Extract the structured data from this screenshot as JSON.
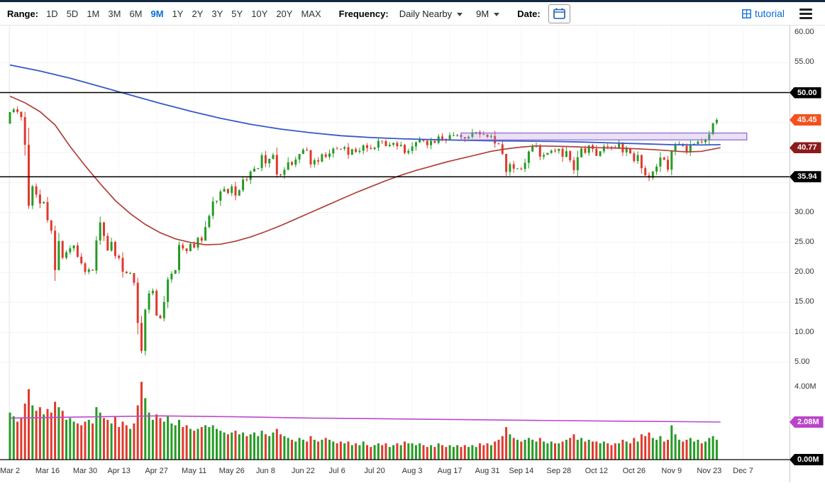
{
  "toolbar": {
    "range_label": "Range:",
    "ranges": [
      "1D",
      "5D",
      "1M",
      "3M",
      "6M",
      "9M",
      "1Y",
      "2Y",
      "3Y",
      "5Y",
      "10Y",
      "20Y",
      "MAX"
    ],
    "selected_range": "9M",
    "frequency_label": "Frequency:",
    "frequency_value": "Daily Nearby",
    "period_value": "9M",
    "date_label": "Date:",
    "tutorial_label": "tutorial"
  },
  "colors": {
    "up": "#259b24",
    "down": "#e0392d",
    "ma_blue": "#3559c7",
    "ma_red": "#b04038",
    "vol_ma": "#bb49cc",
    "rect_stroke": "#8a63d2",
    "rect_fill": "rgba(176,150,222,0.28)",
    "hline": "#000000",
    "accent_blue": "#0a6cd6"
  },
  "chart_data": {
    "type": "candlestick-with-volume",
    "frequency": "Daily Nearby",
    "range": "9M",
    "ylim": [
      5,
      60
    ],
    "volume_ylim": [
      0,
      4.3
    ],
    "grid": "faint",
    "x_ticks": [
      {
        "label": "Mar 2",
        "d": 0
      },
      {
        "label": "Mar 16",
        "d": 10
      },
      {
        "label": "Mar 30",
        "d": 20
      },
      {
        "label": "Apr 13",
        "d": 29
      },
      {
        "label": "Apr 27",
        "d": 39
      },
      {
        "label": "May 11",
        "d": 49
      },
      {
        "label": "May 26",
        "d": 59
      },
      {
        "label": "Jun 8",
        "d": 68
      },
      {
        "label": "Jun 22",
        "d": 78
      },
      {
        "label": "Jul 6",
        "d": 87
      },
      {
        "label": "Jul 20",
        "d": 97
      },
      {
        "label": "Aug 3",
        "d": 107
      },
      {
        "label": "Aug 17",
        "d": 117
      },
      {
        "label": "Aug 31",
        "d": 127
      },
      {
        "label": "Sep 14",
        "d": 136
      },
      {
        "label": "Sep 28",
        "d": 146
      },
      {
        "label": "Oct 12",
        "d": 156
      },
      {
        "label": "Oct 26",
        "d": 166
      },
      {
        "label": "Nov 9",
        "d": 176
      },
      {
        "label": "Nov 23",
        "d": 186
      },
      {
        "label": "Dec 7",
        "d": 195
      }
    ],
    "price_ticks": [
      {
        "label": "60.00",
        "value": 60
      },
      {
        "label": "55.00",
        "value": 55
      },
      {
        "label": "30.00",
        "value": 30
      },
      {
        "label": "25.00",
        "value": 25
      },
      {
        "label": "20.00",
        "value": 20
      },
      {
        "label": "15.00",
        "value": 15
      },
      {
        "label": "10.00",
        "value": 10
      },
      {
        "label": "5.00",
        "value": 5
      }
    ],
    "price_badges": [
      {
        "label": "50.00",
        "value": 50,
        "color": "#000000"
      },
      {
        "label": "45.45",
        "value": 45.45,
        "color": "#f4511e"
      },
      {
        "label": "40.77",
        "value": 40.77,
        "color": "#8b1b1b"
      },
      {
        "label": "35.94",
        "value": 35.94,
        "color": "#000000"
      }
    ],
    "vol_ticks": [
      {
        "label": "4.00M",
        "value": 4
      }
    ],
    "vol_badges": [
      {
        "label": "2.08M",
        "value": 2.08,
        "color": "#b944c9"
      },
      {
        "label": "0.00M",
        "value": 0,
        "color": "#000000"
      }
    ],
    "hlines": [
      50,
      35.94
    ],
    "annotation_rect": {
      "d1": 120,
      "d2": 196,
      "top": 43.25,
      "bottom": 42.1
    },
    "open_first": 44.8,
    "low_overrides": {
      "35": 6.5,
      "170": 35.2
    },
    "closes": [
      46.75,
      47.18,
      46.78,
      45.9,
      41.28,
      31.13,
      34.36,
      32.98,
      31.5,
      31.73,
      28.7,
      26.95,
      20.37,
      25.22,
      22.43,
      23.36,
      24.01,
      24.49,
      22.6,
      21.51,
      20.09,
      20.48,
      20.31,
      25.32,
      28.34,
      26.08,
      23.63,
      25.09,
      22.76,
      22.41,
      20.11,
      19.87,
      19.87,
      18.27,
      11.57,
      6.9,
      13.78,
      16.5,
      16.94,
      12.78,
      12.34,
      15.06,
      18.84,
      19.78,
      20.39,
      24.56,
      23.99,
      23.55,
      24.74,
      24.14,
      25.78,
      25.29,
      27.56,
      29.43,
      31.82,
      31.96,
      33.49,
      33.92,
      33.25,
      34.35,
      32.81,
      33.71,
      35.49,
      35.44,
      36.81,
      37.29,
      37.41,
      39.55,
      38.19,
      38.94,
      39.6,
      36.34,
      36.26,
      37.12,
      38.38,
      37.96,
      38.84,
      39.75,
      40.46,
      40.37,
      38.01,
      38.72,
      38.49,
      39.7,
      39.27,
      39.82,
      40.65,
      40.63,
      40.62,
      40.9,
      39.62,
      40.55,
      40.1,
      40.29,
      41.2,
      40.75,
      40.59,
      40.81,
      41.96,
      41.9,
      41.07,
      41.29,
      41.6,
      41.04,
      41.27,
      39.92,
      40.27,
      41.01,
      41.7,
      42.19,
      41.95,
      41.22,
      41.94,
      41.61,
      42.67,
      42.24,
      42.01,
      42.89,
      42.89,
      42.93,
      42.58,
      42.34,
      42.62,
      43.35,
      43.39,
      43.04,
      42.97,
      42.61,
      42.76,
      41.51,
      41.37,
      39.77,
      36.76,
      38.05,
      37.3,
      37.33,
      37.26,
      38.28,
      40.16,
      40.97,
      41.11,
      39.31,
      39.6,
      39.93,
      40.31,
      40.25,
      40.6,
      39.29,
      40.22,
      38.72,
      37.05,
      39.22,
      40.67,
      39.95,
      41.19,
      40.6,
      39.43,
      40.2,
      41.04,
      40.96,
      40.88,
      40.83,
      41.46,
      40.03,
      40.64,
      39.85,
      38.56,
      39.57,
      37.39,
      36.17,
      35.79,
      36.81,
      37.66,
      39.15,
      38.79,
      37.14,
      40.29,
      41.36,
      41.45,
      41.12,
      40.13,
      41.34,
      41.43,
      41.82,
      41.74,
      42.15,
      43.06,
      44.91,
      45.45
    ],
    "volumes": [
      2.6,
      2.4,
      2.1,
      2.3,
      3.1,
      3.9,
      3.0,
      2.7,
      2.9,
      2.5,
      2.8,
      2.6,
      3.2,
      2.9,
      2.7,
      2.2,
      2.3,
      2.1,
      2.0,
      1.9,
      2.1,
      2.2,
      2.0,
      2.9,
      2.6,
      2.3,
      2.2,
      2.0,
      2.4,
      1.8,
      2.1,
      1.9,
      1.7,
      2.0,
      3.0,
      4.3,
      3.4,
      2.6,
      2.2,
      2.5,
      2.3,
      2.1,
      2.4,
      2.0,
      1.9,
      2.2,
      1.8,
      1.9,
      1.7,
      1.6,
      1.7,
      1.8,
      1.9,
      1.8,
      1.9,
      1.7,
      1.6,
      1.5,
      1.4,
      1.5,
      1.6,
      1.4,
      1.5,
      1.3,
      1.4,
      1.5,
      1.3,
      1.6,
      1.4,
      1.3,
      1.5,
      1.7,
      1.4,
      1.3,
      1.2,
      1.1,
      1.0,
      1.2,
      1.1,
      1.0,
      1.3,
      1.1,
      1.0,
      1.1,
      1.2,
      1.1,
      1.0,
      0.9,
      1.0,
      0.9,
      1.0,
      0.8,
      0.9,
      0.8,
      1.0,
      0.8,
      0.7,
      0.8,
      0.9,
      0.8,
      0.9,
      0.7,
      0.8,
      0.9,
      0.8,
      1.0,
      0.9,
      0.9,
      0.8,
      0.9,
      0.8,
      0.7,
      0.8,
      0.7,
      0.9,
      0.8,
      0.7,
      0.8,
      0.7,
      0.8,
      0.7,
      0.8,
      0.7,
      0.8,
      0.7,
      0.9,
      0.8,
      0.9,
      0.8,
      1.0,
      1.1,
      1.3,
      1.8,
      1.4,
      1.2,
      1.1,
      1.0,
      1.1,
      1.2,
      1.1,
      1.0,
      1.2,
      1.0,
      0.9,
      1.0,
      0.9,
      0.9,
      1.0,
      1.1,
      1.2,
      1.4,
      1.1,
      1.2,
      1.0,
      1.1,
      1.0,
      1.0,
      0.9,
      1.0,
      0.9,
      0.8,
      0.9,
      0.9,
      1.1,
      1.0,
      0.9,
      1.2,
      1.0,
      1.4,
      1.3,
      1.5,
      1.2,
      1.1,
      1.3,
      1.0,
      1.1,
      1.9,
      1.4,
      1.1,
      1.0,
      1.1,
      1.2,
      1.0,
      1.1,
      0.9,
      1.0,
      1.2,
      1.3,
      1.1
    ],
    "ma_blue": [
      [
        0,
        54.6
      ],
      [
        8,
        53.6
      ],
      [
        16,
        52.4
      ],
      [
        24,
        51.0
      ],
      [
        32,
        49.6
      ],
      [
        40,
        48.2
      ],
      [
        48,
        46.9
      ],
      [
        56,
        45.7
      ],
      [
        64,
        44.7
      ],
      [
        72,
        43.9
      ],
      [
        80,
        43.3
      ],
      [
        88,
        42.8
      ],
      [
        96,
        42.5
      ],
      [
        104,
        42.3
      ],
      [
        112,
        42.15
      ],
      [
        120,
        42.05
      ],
      [
        128,
        41.95
      ],
      [
        136,
        41.9
      ],
      [
        144,
        41.85
      ],
      [
        152,
        41.75
      ],
      [
        160,
        41.6
      ],
      [
        168,
        41.45
      ],
      [
        176,
        41.3
      ],
      [
        184,
        41.25
      ],
      [
        189,
        41.3
      ]
    ],
    "ma_red": [
      [
        0,
        49.4
      ],
      [
        4,
        48.3
      ],
      [
        8,
        46.8
      ],
      [
        12,
        44.6
      ],
      [
        16,
        41.0
      ],
      [
        20,
        37.8
      ],
      [
        24,
        34.8
      ],
      [
        28,
        32.0
      ],
      [
        32,
        29.8
      ],
      [
        36,
        28.0
      ],
      [
        40,
        26.6
      ],
      [
        44,
        25.6
      ],
      [
        48,
        25.0
      ],
      [
        52,
        24.6
      ],
      [
        56,
        24.7
      ],
      [
        60,
        25.2
      ],
      [
        64,
        25.9
      ],
      [
        68,
        26.8
      ],
      [
        72,
        27.8
      ],
      [
        76,
        28.9
      ],
      [
        80,
        30.0
      ],
      [
        84,
        31.1
      ],
      [
        88,
        32.2
      ],
      [
        92,
        33.3
      ],
      [
        96,
        34.3
      ],
      [
        100,
        35.3
      ],
      [
        104,
        36.2
      ],
      [
        108,
        37.0
      ],
      [
        112,
        37.7
      ],
      [
        116,
        38.4
      ],
      [
        120,
        39.0
      ],
      [
        124,
        39.6
      ],
      [
        128,
        40.2
      ],
      [
        132,
        40.6
      ],
      [
        136,
        40.9
      ],
      [
        140,
        41.1
      ],
      [
        148,
        41.0
      ],
      [
        156,
        40.8
      ],
      [
        164,
        40.7
      ],
      [
        172,
        40.45
      ],
      [
        180,
        40.1
      ],
      [
        184,
        40.2
      ],
      [
        189,
        40.8
      ]
    ],
    "vol_ma": [
      [
        0,
        2.3
      ],
      [
        20,
        2.36
      ],
      [
        40,
        2.42
      ],
      [
        60,
        2.37
      ],
      [
        80,
        2.3
      ],
      [
        100,
        2.26
      ],
      [
        120,
        2.21
      ],
      [
        140,
        2.17
      ],
      [
        160,
        2.13
      ],
      [
        180,
        2.1
      ],
      [
        189,
        2.08
      ]
    ]
  }
}
